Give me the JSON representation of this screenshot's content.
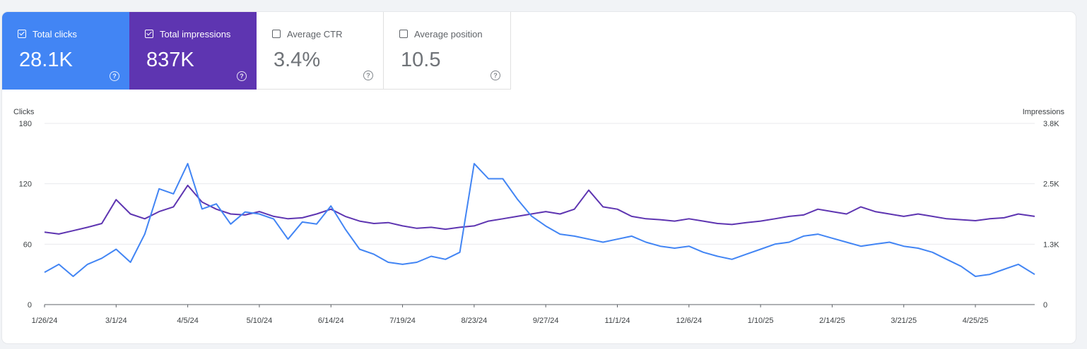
{
  "metrics": [
    {
      "label": "Total clicks",
      "value": "28.1K",
      "checked": true,
      "color": "#4285f4"
    },
    {
      "label": "Total impressions",
      "value": "837K",
      "checked": true,
      "color": "#5e35b1"
    },
    {
      "label": "Average CTR",
      "value": "3.4%",
      "checked": false
    },
    {
      "label": "Average position",
      "value": "10.5",
      "checked": false
    }
  ],
  "help_glyph": "?",
  "chart_data": {
    "type": "line",
    "left_axis_label": "Clicks",
    "right_axis_label": "Impressions",
    "left_ticks": [
      "0",
      "60",
      "120",
      "180"
    ],
    "right_ticks": [
      "0",
      "1.3K",
      "2.5K",
      "3.8K"
    ],
    "left_range": [
      0,
      180
    ],
    "right_range": [
      0,
      3800
    ],
    "x_tick_labels": [
      "1/26/24",
      "3/1/24",
      "4/5/24",
      "5/10/24",
      "6/14/24",
      "7/19/24",
      "8/23/24",
      "9/27/24",
      "11/1/24",
      "12/6/24",
      "1/10/25",
      "2/14/25",
      "3/21/25",
      "4/25/25"
    ],
    "x_range": [
      "1/26/24",
      "5/24/25"
    ],
    "grid": true,
    "series": [
      {
        "name": "Total clicks",
        "axis": "left",
        "color": "#4285f4",
        "points": [
          [
            "1/26/24",
            32
          ],
          [
            "2/2/24",
            40
          ],
          [
            "2/9/24",
            28
          ],
          [
            "2/16/24",
            40
          ],
          [
            "2/23/24",
            46
          ],
          [
            "3/1/24",
            55
          ],
          [
            "3/8/24",
            42
          ],
          [
            "3/15/24",
            70
          ],
          [
            "3/22/24",
            115
          ],
          [
            "3/29/24",
            110
          ],
          [
            "4/5/24",
            140
          ],
          [
            "4/12/24",
            95
          ],
          [
            "4/19/24",
            100
          ],
          [
            "4/26/24",
            80
          ],
          [
            "5/3/24",
            92
          ],
          [
            "5/10/24",
            90
          ],
          [
            "5/17/24",
            85
          ],
          [
            "5/24/24",
            65
          ],
          [
            "5/31/24",
            82
          ],
          [
            "6/7/24",
            80
          ],
          [
            "6/14/24",
            98
          ],
          [
            "6/21/24",
            75
          ],
          [
            "6/28/24",
            55
          ],
          [
            "7/5/24",
            50
          ],
          [
            "7/12/24",
            42
          ],
          [
            "7/19/24",
            40
          ],
          [
            "7/26/24",
            42
          ],
          [
            "8/2/24",
            48
          ],
          [
            "8/9/24",
            45
          ],
          [
            "8/16/24",
            52
          ],
          [
            "8/23/24",
            140
          ],
          [
            "8/30/24",
            125
          ],
          [
            "9/6/24",
            125
          ],
          [
            "9/13/24",
            105
          ],
          [
            "9/20/24",
            88
          ],
          [
            "9/27/24",
            78
          ],
          [
            "10/4/24",
            70
          ],
          [
            "10/11/24",
            68
          ],
          [
            "10/18/24",
            65
          ],
          [
            "10/25/24",
            62
          ],
          [
            "11/1/24",
            65
          ],
          [
            "11/8/24",
            68
          ],
          [
            "11/15/24",
            62
          ],
          [
            "11/22/24",
            58
          ],
          [
            "11/29/24",
            56
          ],
          [
            "12/6/24",
            58
          ],
          [
            "12/13/24",
            52
          ],
          [
            "12/20/24",
            48
          ],
          [
            "12/27/24",
            45
          ],
          [
            "1/3/25",
            50
          ],
          [
            "1/10/25",
            55
          ],
          [
            "1/17/25",
            60
          ],
          [
            "1/24/25",
            62
          ],
          [
            "1/31/25",
            68
          ],
          [
            "2/7/25",
            70
          ],
          [
            "2/14/25",
            66
          ],
          [
            "2/21/25",
            62
          ],
          [
            "2/28/25",
            58
          ],
          [
            "3/7/25",
            60
          ],
          [
            "3/14/25",
            62
          ],
          [
            "3/21/25",
            58
          ],
          [
            "3/28/25",
            56
          ],
          [
            "4/4/25",
            52
          ],
          [
            "4/11/25",
            45
          ],
          [
            "4/18/25",
            38
          ],
          [
            "4/25/25",
            28
          ],
          [
            "5/2/25",
            30
          ],
          [
            "5/9/25",
            35
          ],
          [
            "5/16/25",
            40
          ],
          [
            "5/24/25",
            30
          ]
        ]
      },
      {
        "name": "Total impressions",
        "axis": "right",
        "color": "#5e35b1",
        "points": [
          [
            "1/26/24",
            1520
          ],
          [
            "2/2/24",
            1480
          ],
          [
            "2/9/24",
            1550
          ],
          [
            "2/16/24",
            1620
          ],
          [
            "2/23/24",
            1700
          ],
          [
            "3/1/24",
            2200
          ],
          [
            "3/8/24",
            1900
          ],
          [
            "3/15/24",
            1800
          ],
          [
            "3/22/24",
            1950
          ],
          [
            "3/29/24",
            2050
          ],
          [
            "4/5/24",
            2500
          ],
          [
            "4/12/24",
            2150
          ],
          [
            "4/19/24",
            2000
          ],
          [
            "4/26/24",
            1900
          ],
          [
            "5/3/24",
            1880
          ],
          [
            "5/10/24",
            1950
          ],
          [
            "5/17/24",
            1850
          ],
          [
            "5/24/24",
            1800
          ],
          [
            "5/31/24",
            1820
          ],
          [
            "6/7/24",
            1900
          ],
          [
            "6/14/24",
            2000
          ],
          [
            "6/21/24",
            1850
          ],
          [
            "6/28/24",
            1750
          ],
          [
            "7/5/24",
            1700
          ],
          [
            "7/12/24",
            1720
          ],
          [
            "7/19/24",
            1650
          ],
          [
            "7/26/24",
            1600
          ],
          [
            "8/2/24",
            1620
          ],
          [
            "8/9/24",
            1580
          ],
          [
            "8/16/24",
            1620
          ],
          [
            "8/23/24",
            1650
          ],
          [
            "8/30/24",
            1750
          ],
          [
            "9/6/24",
            1800
          ],
          [
            "9/13/24",
            1850
          ],
          [
            "9/20/24",
            1900
          ],
          [
            "9/27/24",
            1950
          ],
          [
            "10/4/24",
            1900
          ],
          [
            "10/11/24",
            2000
          ],
          [
            "10/18/24",
            2400
          ],
          [
            "10/25/24",
            2050
          ],
          [
            "11/1/24",
            2000
          ],
          [
            "11/8/24",
            1850
          ],
          [
            "11/15/24",
            1800
          ],
          [
            "11/22/24",
            1780
          ],
          [
            "11/29/24",
            1750
          ],
          [
            "12/6/24",
            1800
          ],
          [
            "12/13/24",
            1750
          ],
          [
            "12/20/24",
            1700
          ],
          [
            "12/27/24",
            1680
          ],
          [
            "1/3/25",
            1720
          ],
          [
            "1/10/25",
            1750
          ],
          [
            "1/17/25",
            1800
          ],
          [
            "1/24/25",
            1850
          ],
          [
            "1/31/25",
            1880
          ],
          [
            "2/7/25",
            2000
          ],
          [
            "2/14/25",
            1950
          ],
          [
            "2/21/25",
            1900
          ],
          [
            "2/28/25",
            2050
          ],
          [
            "3/7/25",
            1950
          ],
          [
            "3/14/25",
            1900
          ],
          [
            "3/21/25",
            1850
          ],
          [
            "3/28/25",
            1900
          ],
          [
            "4/4/25",
            1850
          ],
          [
            "4/11/25",
            1800
          ],
          [
            "4/18/25",
            1780
          ],
          [
            "4/25/25",
            1760
          ],
          [
            "5/2/25",
            1800
          ],
          [
            "5/9/25",
            1820
          ],
          [
            "5/16/25",
            1900
          ],
          [
            "5/24/25",
            1850
          ]
        ]
      }
    ]
  }
}
